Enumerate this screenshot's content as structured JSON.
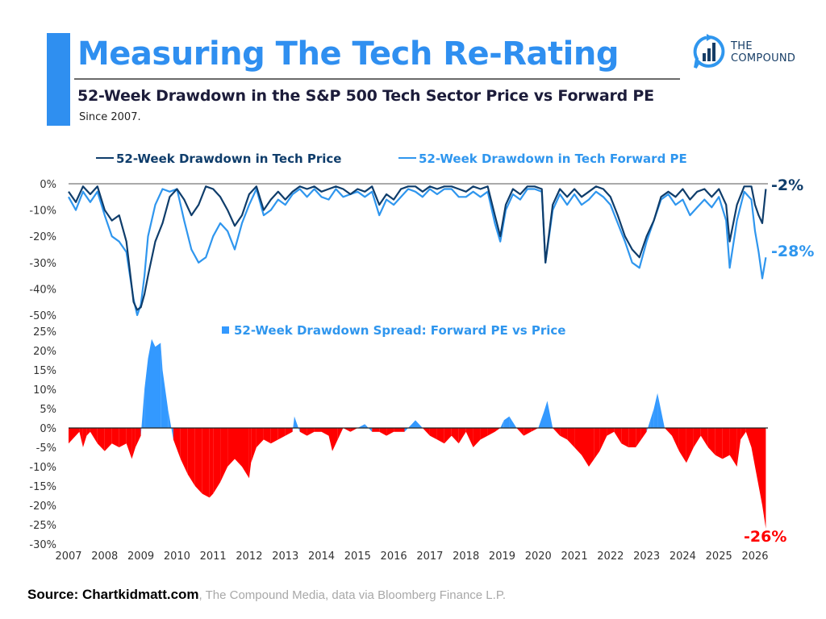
{
  "header": {
    "title": "Measuring The Tech Re-Rating",
    "subtitle": "52-Week Drawdown in the S&P 500 Tech Sector Price vs Forward PE",
    "since": "Since 2007.",
    "logo_line1": "THE",
    "logo_line2": "COMPOUND"
  },
  "footer": {
    "source_bold": "Source: Chartkidmatt.com",
    "source_rest": ", The Compound Media, data via Bloomberg Finance L.P."
  },
  "colors": {
    "title_blue": "#2f8ff0",
    "price_line": "#0f3d6b",
    "pe_line": "#2f96ee",
    "spread_positive": "#3399ff",
    "spread_negative": "#ff0000"
  },
  "chart_data": [
    {
      "type": "line",
      "title": "52-Week Drawdown in Tech Price vs Tech Forward PE",
      "xlabel": "",
      "ylabel": "",
      "ylim": [
        -50,
        0
      ],
      "yticks": [
        "0%",
        "-10%",
        "-20%",
        "-30%",
        "-40%",
        "-50%"
      ],
      "ytick_values": [
        0,
        -10,
        -20,
        -30,
        -40,
        -50
      ],
      "legend_position": "top",
      "grid": false,
      "end_labels": [
        {
          "series": "52-Week Drawdown in Tech Price",
          "text": "-2%",
          "value": -2
        },
        {
          "series": "52-Week Drawdown in Tech Forward PE",
          "text": "-28%",
          "value": -28
        }
      ],
      "x": [
        2007.0,
        2007.2,
        2007.4,
        2007.6,
        2007.8,
        2008.0,
        2008.2,
        2008.4,
        2008.6,
        2008.8,
        2008.9,
        2009.0,
        2009.1,
        2009.2,
        2009.4,
        2009.6,
        2009.8,
        2010.0,
        2010.2,
        2010.4,
        2010.6,
        2010.8,
        2011.0,
        2011.2,
        2011.4,
        2011.6,
        2011.8,
        2012.0,
        2012.2,
        2012.4,
        2012.6,
        2012.8,
        2013.0,
        2013.2,
        2013.4,
        2013.6,
        2013.8,
        2014.0,
        2014.2,
        2014.4,
        2014.6,
        2014.8,
        2015.0,
        2015.2,
        2015.4,
        2015.6,
        2015.8,
        2016.0,
        2016.2,
        2016.4,
        2016.6,
        2016.8,
        2017.0,
        2017.2,
        2017.4,
        2017.6,
        2017.8,
        2018.0,
        2018.2,
        2018.4,
        2018.6,
        2018.8,
        2018.95,
        2019.1,
        2019.3,
        2019.5,
        2019.7,
        2019.9,
        2020.1,
        2020.2,
        2020.4,
        2020.6,
        2020.8,
        2021.0,
        2021.2,
        2021.4,
        2021.6,
        2021.8,
        2022.0,
        2022.2,
        2022.4,
        2022.6,
        2022.8,
        2023.0,
        2023.2,
        2023.4,
        2023.6,
        2023.8,
        2024.0,
        2024.2,
        2024.4,
        2024.6,
        2024.8,
        2025.0,
        2025.2,
        2025.3,
        2025.5,
        2025.7,
        2025.9,
        2026.0,
        2026.1,
        2026.2,
        2026.3
      ],
      "series": [
        {
          "name": "52-Week Drawdown in Tech Price",
          "values": [
            -3,
            -7,
            -1,
            -4,
            -1,
            -10,
            -14,
            -12,
            -22,
            -45,
            -48,
            -47,
            -42,
            -35,
            -22,
            -15,
            -5,
            -2,
            -6,
            -12,
            -8,
            -1,
            -2,
            -5,
            -10,
            -16,
            -12,
            -4,
            -1,
            -10,
            -6,
            -3,
            -6,
            -3,
            -1,
            -2,
            -1,
            -3,
            -2,
            -1,
            -2,
            -4,
            -2,
            -3,
            -1,
            -8,
            -4,
            -6,
            -2,
            -1,
            -1,
            -3,
            -1,
            -2,
            -1,
            -1,
            -2,
            -3,
            -1,
            -2,
            -1,
            -12,
            -20,
            -8,
            -2,
            -4,
            -1,
            -1,
            -2,
            -30,
            -8,
            -2,
            -5,
            -2,
            -5,
            -3,
            -1,
            -2,
            -5,
            -12,
            -20,
            -25,
            -28,
            -20,
            -14,
            -5,
            -3,
            -5,
            -2,
            -6,
            -3,
            -2,
            -5,
            -2,
            -8,
            -22,
            -8,
            -1,
            -1,
            -8,
            -12,
            -15,
            -2
          ]
        },
        {
          "name": "52-Week Drawdown in Tech Forward PE",
          "values": [
            -5,
            -10,
            -3,
            -7,
            -3,
            -12,
            -20,
            -22,
            -26,
            -44,
            -50,
            -46,
            -35,
            -20,
            -8,
            -2,
            -3,
            -2,
            -14,
            -25,
            -30,
            -28,
            -20,
            -15,
            -18,
            -25,
            -15,
            -8,
            -2,
            -12,
            -10,
            -6,
            -8,
            -4,
            -2,
            -5,
            -2,
            -5,
            -6,
            -2,
            -5,
            -4,
            -3,
            -5,
            -3,
            -12,
            -6,
            -8,
            -5,
            -2,
            -3,
            -5,
            -2,
            -4,
            -2,
            -2,
            -5,
            -5,
            -3,
            -5,
            -3,
            -15,
            -22,
            -10,
            -4,
            -6,
            -2,
            -2,
            -3,
            -30,
            -10,
            -4,
            -8,
            -4,
            -8,
            -6,
            -3,
            -5,
            -8,
            -15,
            -22,
            -30,
            -32,
            -22,
            -14,
            -6,
            -4,
            -8,
            -6,
            -12,
            -9,
            -6,
            -9,
            -5,
            -14,
            -32,
            -14,
            -3,
            -6,
            -18,
            -26,
            -36,
            -28
          ]
        }
      ]
    },
    {
      "type": "area",
      "title": "52-Week Drawdown Spread: Forward PE vs Price",
      "xlabel": "",
      "ylabel": "",
      "ylim": [
        -30,
        25
      ],
      "yticks": [
        "25%",
        "20%",
        "15%",
        "10%",
        "5%",
        "0%",
        "-5%",
        "-10%",
        "-15%",
        "-20%",
        "-25%",
        "-30%"
      ],
      "ytick_values": [
        25,
        20,
        15,
        10,
        5,
        0,
        -5,
        -10,
        -15,
        -20,
        -25,
        -30
      ],
      "xticks": [
        "2007",
        "2008",
        "2009",
        "2010",
        "2011",
        "2012",
        "2013",
        "2014",
        "2015",
        "2016",
        "2017",
        "2018",
        "2019",
        "2020",
        "2021",
        "2022",
        "2023",
        "2024",
        "2025",
        "2026"
      ],
      "legend_position": "top-center",
      "grid": false,
      "end_label": {
        "text": "-26%",
        "value": -26
      },
      "x": [
        2007.0,
        2007.1,
        2007.3,
        2007.4,
        2007.5,
        2007.6,
        2007.8,
        2008.0,
        2008.2,
        2008.4,
        2008.6,
        2008.75,
        2008.85,
        2009.0,
        2009.1,
        2009.2,
        2009.3,
        2009.4,
        2009.55,
        2009.6,
        2009.75,
        2009.9,
        2010.1,
        2010.3,
        2010.5,
        2010.7,
        2010.9,
        2011.0,
        2011.2,
        2011.4,
        2011.6,
        2011.8,
        2012.0,
        2012.05,
        2012.2,
        2012.4,
        2012.6,
        2012.8,
        2013.0,
        2013.2,
        2013.25,
        2013.4,
        2013.6,
        2013.8,
        2014.0,
        2014.2,
        2014.3,
        2014.45,
        2014.6,
        2014.8,
        2015.0,
        2015.2,
        2015.4,
        2015.6,
        2015.8,
        2016.0,
        2016.3,
        2016.5,
        2016.6,
        2016.8,
        2017.0,
        2017.2,
        2017.4,
        2017.6,
        2017.8,
        2018.0,
        2018.2,
        2018.4,
        2018.6,
        2018.8,
        2018.95,
        2019.05,
        2019.2,
        2019.4,
        2019.6,
        2019.8,
        2020.0,
        2020.15,
        2020.25,
        2020.4,
        2020.6,
        2020.8,
        2021.0,
        2021.2,
        2021.4,
        2021.55,
        2021.7,
        2021.9,
        2022.1,
        2022.3,
        2022.5,
        2022.7,
        2022.85,
        2023.0,
        2023.1,
        2023.2,
        2023.3,
        2023.5,
        2023.7,
        2023.9,
        2024.1,
        2024.3,
        2024.5,
        2024.7,
        2024.9,
        2025.1,
        2025.3,
        2025.5,
        2025.6,
        2025.75,
        2025.9,
        2026.0,
        2026.1,
        2026.2,
        2026.3
      ],
      "values": [
        -4,
        -3,
        -1,
        -5,
        -2,
        -1,
        -4,
        -6,
        -4,
        -5,
        -4,
        -8,
        -5,
        -2,
        10,
        18,
        23,
        21,
        22,
        15,
        5,
        -3,
        -8,
        -12,
        -15,
        -17,
        -18,
        -17,
        -14,
        -10,
        -8,
        -10,
        -13,
        -9,
        -5,
        -3,
        -4,
        -3,
        -2,
        -1,
        3,
        -1,
        -2,
        -1,
        -1,
        -2,
        -6,
        -3,
        0,
        -1,
        0,
        1,
        -1,
        -1,
        -2,
        -1,
        -1,
        1,
        2,
        0,
        -2,
        -3,
        -4,
        -2,
        -4,
        -1,
        -5,
        -3,
        -2,
        -1,
        0,
        2,
        3,
        0,
        -2,
        -1,
        0,
        4,
        7,
        0,
        -2,
        -3,
        -5,
        -7,
        -10,
        -8,
        -6,
        -2,
        -1,
        -4,
        -5,
        -5,
        -3,
        -1,
        2,
        5,
        9,
        0,
        -2,
        -6,
        -9,
        -5,
        -2,
        -5,
        -7,
        -8,
        -7,
        -10,
        -3,
        -1,
        -5,
        -10,
        -15,
        -20,
        -26
      ]
    }
  ]
}
